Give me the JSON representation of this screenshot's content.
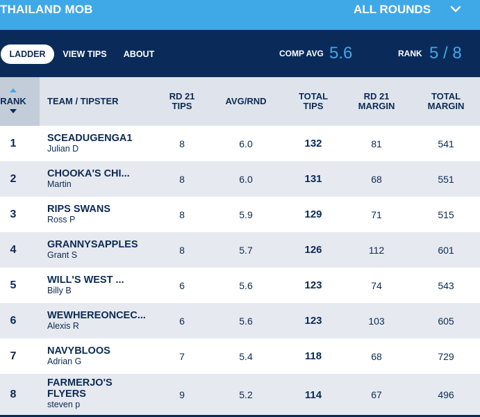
{
  "header": {
    "group_name": "THAILAND MOB",
    "rounds_label": "ALL ROUNDS",
    "chevron_icon": "chevron-down-icon"
  },
  "nav": {
    "tabs": [
      {
        "label": "LADDER",
        "active": true
      },
      {
        "label": "VIEW TIPS",
        "active": false
      },
      {
        "label": "ABOUT",
        "active": false
      }
    ],
    "comp_avg_label": "COMP AVG",
    "comp_avg_value": "5.6",
    "rank_label": "RANK",
    "rank_value": "5 / 8"
  },
  "table": {
    "headers": {
      "rank": "RANK",
      "team": "TEAM / TIPSTER",
      "rd_tips_1": "RD 21",
      "rd_tips_2": "TIPS",
      "avg": "AVG/RND",
      "total_tips_1": "TOTAL",
      "total_tips_2": "TIPS",
      "rd_margin_1": "RD 21",
      "rd_margin_2": "MARGIN",
      "total_margin_1": "TOTAL",
      "total_margin_2": "MARGIN"
    },
    "rows": [
      {
        "rank": "1",
        "team": "SCEADUGENGA1",
        "tipster": "Julian D",
        "rd_tips": "8",
        "avg": "6.0",
        "total_tips": "132",
        "rd_margin": "81",
        "total_margin": "541"
      },
      {
        "rank": "2",
        "team": "CHOOKA'S CHI...",
        "tipster": "Martin",
        "rd_tips": "8",
        "avg": "6.0",
        "total_tips": "131",
        "rd_margin": "68",
        "total_margin": "551"
      },
      {
        "rank": "3",
        "team": "RIPS SWANS",
        "tipster": "Ross P",
        "rd_tips": "8",
        "avg": "5.9",
        "total_tips": "129",
        "rd_margin": "71",
        "total_margin": "515"
      },
      {
        "rank": "4",
        "team": "GRANNYSAPPLES",
        "tipster": "Grant S",
        "rd_tips": "8",
        "avg": "5.7",
        "total_tips": "126",
        "rd_margin": "112",
        "total_margin": "601"
      },
      {
        "rank": "5",
        "team": "WILL'S WEST ...",
        "tipster": "Billy B",
        "rd_tips": "6",
        "avg": "5.6",
        "total_tips": "123",
        "rd_margin": "74",
        "total_margin": "543"
      },
      {
        "rank": "6",
        "team": "WEWHEREONCEC...",
        "tipster": "Alexis R",
        "rd_tips": "6",
        "avg": "5.6",
        "total_tips": "123",
        "rd_margin": "103",
        "total_margin": "605"
      },
      {
        "rank": "7",
        "team": "NAVYBLOOS",
        "tipster": "Adrian G",
        "rd_tips": "7",
        "avg": "5.4",
        "total_tips": "118",
        "rd_margin": "68",
        "total_margin": "729"
      },
      {
        "rank": "8",
        "team_line1": "FARMERJO'S",
        "team_line2": "FLYERS",
        "tipster": "steven p",
        "rd_tips": "9",
        "avg": "5.2",
        "total_tips": "114",
        "rd_margin": "67",
        "total_margin": "496"
      }
    ]
  },
  "colors": {
    "topbar": "#3fa9e8",
    "navbar": "#0a2b5a",
    "accent_value": "#40a8e8",
    "header_bg": "#dfe4ec",
    "rank_header_bg": "#c3ccd9",
    "alt_row": "#e6e9ef"
  }
}
